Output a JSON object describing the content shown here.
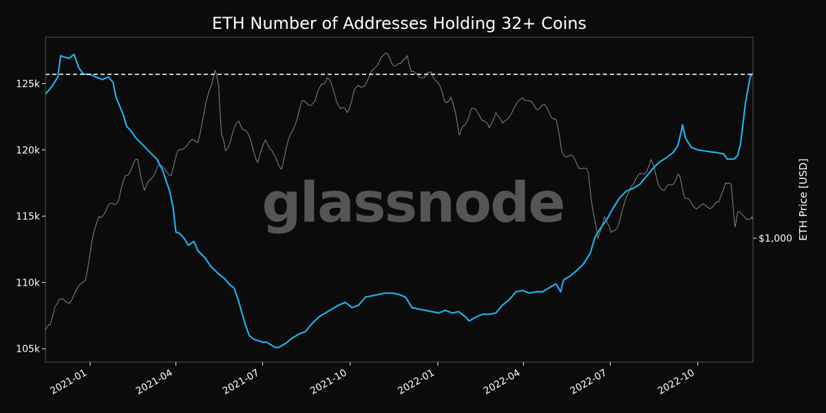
{
  "chart_data": {
    "type": "line",
    "title": "ETH Number of Addresses Holding 32+ Coins",
    "watermark": "glassnode",
    "xlabel": "",
    "ylabel_left": "",
    "ylabel_right": "ETH Price [USD]",
    "x_range": [
      "2020-11-15",
      "2022-11-28"
    ],
    "ylim_left": [
      104000,
      128500
    ],
    "y_right_scale": "log",
    "ylim_right": [
      350,
      5500
    ],
    "x_ticks": [
      {
        "date": "2021-01-01",
        "label": "2021-01"
      },
      {
        "date": "2021-04-01",
        "label": "2021-04"
      },
      {
        "date": "2021-07-01",
        "label": "2021-07"
      },
      {
        "date": "2021-10-01",
        "label": "2021-10"
      },
      {
        "date": "2022-01-01",
        "label": "2022-01"
      },
      {
        "date": "2022-04-01",
        "label": "2022-04"
      },
      {
        "date": "2022-07-01",
        "label": "2022-07"
      },
      {
        "date": "2022-10-01",
        "label": "2022-10"
      }
    ],
    "y_left_ticks": [
      {
        "value": 105000,
        "label": "105k"
      },
      {
        "value": 110000,
        "label": "110k"
      },
      {
        "value": 115000,
        "label": "115k"
      },
      {
        "value": 120000,
        "label": "120k"
      },
      {
        "value": 125000,
        "label": "125k"
      }
    ],
    "y_right_ticks": [
      {
        "value": 1000,
        "label": "$1,000"
      }
    ],
    "reference_line": {
      "value": 125700,
      "style": "dashed",
      "color": "#ffffff"
    },
    "colors": {
      "background": "#0b0b0b",
      "addresses": "#1eb4f0",
      "price": "#8a8a8a",
      "frame": "#555555"
    },
    "series": [
      {
        "axis": "left",
        "color": "#1eb4f0",
        "points": [
          [
            "2020-11-15",
            124200
          ],
          [
            "2020-11-22",
            124800
          ],
          [
            "2020-11-28",
            125500
          ],
          [
            "2020-12-01",
            127100
          ],
          [
            "2020-12-05",
            127000
          ],
          [
            "2020-12-10",
            126900
          ],
          [
            "2020-12-15",
            127200
          ],
          [
            "2020-12-20",
            126200
          ],
          [
            "2020-12-25",
            125700
          ],
          [
            "2021-01-01",
            125700
          ],
          [
            "2021-01-07",
            125500
          ],
          [
            "2021-01-14",
            125300
          ],
          [
            "2021-01-20",
            125500
          ],
          [
            "2021-01-25",
            125100
          ],
          [
            "2021-01-28",
            124000
          ],
          [
            "2021-02-01",
            123300
          ],
          [
            "2021-02-05",
            122600
          ],
          [
            "2021-02-08",
            121800
          ],
          [
            "2021-02-12",
            121500
          ],
          [
            "2021-02-18",
            120900
          ],
          [
            "2021-02-25",
            120400
          ],
          [
            "2021-03-05",
            119800
          ],
          [
            "2021-03-12",
            119300
          ],
          [
            "2021-03-18",
            118500
          ],
          [
            "2021-03-22",
            117600
          ],
          [
            "2021-03-25",
            117000
          ],
          [
            "2021-03-29",
            115700
          ],
          [
            "2021-04-01",
            113800
          ],
          [
            "2021-04-05",
            113700
          ],
          [
            "2021-04-10",
            113300
          ],
          [
            "2021-04-14",
            112800
          ],
          [
            "2021-04-20",
            113100
          ],
          [
            "2021-04-24",
            112400
          ],
          [
            "2021-05-01",
            111900
          ],
          [
            "2021-05-08",
            111200
          ],
          [
            "2021-05-15",
            110700
          ],
          [
            "2021-05-22",
            110300
          ],
          [
            "2021-05-28",
            109800
          ],
          [
            "2021-06-01",
            109600
          ],
          [
            "2021-06-05",
            108800
          ],
          [
            "2021-06-09",
            107800
          ],
          [
            "2021-06-13",
            106800
          ],
          [
            "2021-06-17",
            106000
          ],
          [
            "2021-06-22",
            105700
          ],
          [
            "2021-06-27",
            105600
          ],
          [
            "2021-07-01",
            105500
          ],
          [
            "2021-07-05",
            105500
          ],
          [
            "2021-07-10",
            105300
          ],
          [
            "2021-07-14",
            105100
          ],
          [
            "2021-07-18",
            105100
          ],
          [
            "2021-07-25",
            105400
          ],
          [
            "2021-08-01",
            105800
          ],
          [
            "2021-08-08",
            106100
          ],
          [
            "2021-08-15",
            106300
          ],
          [
            "2021-08-22",
            106900
          ],
          [
            "2021-08-29",
            107400
          ],
          [
            "2021-09-05",
            107700
          ],
          [
            "2021-09-12",
            108000
          ],
          [
            "2021-09-19",
            108300
          ],
          [
            "2021-09-26",
            108500
          ],
          [
            "2021-10-03",
            108100
          ],
          [
            "2021-10-10",
            108300
          ],
          [
            "2021-10-17",
            108900
          ],
          [
            "2021-10-24",
            109000
          ],
          [
            "2021-10-31",
            109100
          ],
          [
            "2021-11-07",
            109200
          ],
          [
            "2021-11-14",
            109200
          ],
          [
            "2021-11-21",
            109100
          ],
          [
            "2021-11-28",
            108900
          ],
          [
            "2021-12-05",
            108100
          ],
          [
            "2021-12-12",
            108000
          ],
          [
            "2021-12-19",
            107900
          ],
          [
            "2021-12-26",
            107800
          ],
          [
            "2022-01-02",
            107700
          ],
          [
            "2022-01-09",
            107900
          ],
          [
            "2022-01-16",
            107700
          ],
          [
            "2022-01-23",
            107800
          ],
          [
            "2022-01-30",
            107400
          ],
          [
            "2022-02-03",
            107100
          ],
          [
            "2022-02-10",
            107400
          ],
          [
            "2022-02-17",
            107600
          ],
          [
            "2022-02-24",
            107600
          ],
          [
            "2022-03-03",
            107700
          ],
          [
            "2022-03-10",
            108300
          ],
          [
            "2022-03-17",
            108700
          ],
          [
            "2022-03-24",
            109300
          ],
          [
            "2022-03-31",
            109400
          ],
          [
            "2022-04-07",
            109200
          ],
          [
            "2022-04-14",
            109300
          ],
          [
            "2022-04-21",
            109300
          ],
          [
            "2022-04-28",
            109600
          ],
          [
            "2022-05-05",
            109900
          ],
          [
            "2022-05-10",
            109300
          ],
          [
            "2022-05-13",
            110200
          ],
          [
            "2022-05-20",
            110500
          ],
          [
            "2022-05-27",
            110900
          ],
          [
            "2022-06-03",
            111400
          ],
          [
            "2022-06-10",
            112200
          ],
          [
            "2022-06-15",
            113400
          ],
          [
            "2022-06-20",
            114000
          ],
          [
            "2022-06-27",
            114700
          ],
          [
            "2022-07-04",
            115600
          ],
          [
            "2022-07-11",
            116400
          ],
          [
            "2022-07-18",
            116900
          ],
          [
            "2022-07-25",
            117100
          ],
          [
            "2022-08-01",
            117400
          ],
          [
            "2022-08-08",
            118000
          ],
          [
            "2022-08-15",
            118600
          ],
          [
            "2022-08-22",
            119100
          ],
          [
            "2022-08-29",
            119400
          ],
          [
            "2022-09-05",
            119800
          ],
          [
            "2022-09-10",
            120300
          ],
          [
            "2022-09-14",
            121500
          ],
          [
            "2022-09-15",
            121900
          ],
          [
            "2022-09-18",
            120900
          ],
          [
            "2022-09-24",
            120200
          ],
          [
            "2022-10-01",
            120000
          ],
          [
            "2022-10-10",
            119900
          ],
          [
            "2022-10-20",
            119800
          ],
          [
            "2022-10-28",
            119700
          ],
          [
            "2022-11-01",
            119300
          ],
          [
            "2022-11-08",
            119300
          ],
          [
            "2022-11-12",
            119600
          ],
          [
            "2022-11-15",
            120500
          ],
          [
            "2022-11-20",
            123500
          ],
          [
            "2022-11-25",
            125500
          ],
          [
            "2022-11-28",
            125800
          ]
        ]
      },
      {
        "axis": "right",
        "color": "#8a8a8a",
        "points": [
          [
            "2020-11-15",
            460
          ],
          [
            "2020-11-20",
            480
          ],
          [
            "2020-11-25",
            560
          ],
          [
            "2020-12-01",
            600
          ],
          [
            "2020-12-10",
            575
          ],
          [
            "2020-12-18",
            650
          ],
          [
            "2020-12-27",
            700
          ],
          [
            "2021-01-03",
            980
          ],
          [
            "2021-01-10",
            1200
          ],
          [
            "2021-01-17",
            1250
          ],
          [
            "2021-01-24",
            1350
          ],
          [
            "2021-01-31",
            1380
          ],
          [
            "2021-02-07",
            1700
          ],
          [
            "2021-02-14",
            1830
          ],
          [
            "2021-02-20",
            1950
          ],
          [
            "2021-02-27",
            1500
          ],
          [
            "2021-03-06",
            1650
          ],
          [
            "2021-03-13",
            1850
          ],
          [
            "2021-03-20",
            1800
          ],
          [
            "2021-03-27",
            1700
          ],
          [
            "2021-04-03",
            2100
          ],
          [
            "2021-04-10",
            2150
          ],
          [
            "2021-04-17",
            2300
          ],
          [
            "2021-04-24",
            2250
          ],
          [
            "2021-05-01",
            2950
          ],
          [
            "2021-05-06",
            3500
          ],
          [
            "2021-05-12",
            4150
          ],
          [
            "2021-05-16",
            3600
          ],
          [
            "2021-05-19",
            2400
          ],
          [
            "2021-05-23",
            2100
          ],
          [
            "2021-05-30",
            2400
          ],
          [
            "2021-06-06",
            2700
          ],
          [
            "2021-06-13",
            2500
          ],
          [
            "2021-06-20",
            2200
          ],
          [
            "2021-06-26",
            1900
          ],
          [
            "2021-07-04",
            2300
          ],
          [
            "2021-07-11",
            2100
          ],
          [
            "2021-07-18",
            1850
          ],
          [
            "2021-07-21",
            1800
          ],
          [
            "2021-07-28",
            2300
          ],
          [
            "2021-08-04",
            2600
          ],
          [
            "2021-08-11",
            3200
          ],
          [
            "2021-08-18",
            3100
          ],
          [
            "2021-08-25",
            3200
          ],
          [
            "2021-09-01",
            3700
          ],
          [
            "2021-09-07",
            3900
          ],
          [
            "2021-09-14",
            3450
          ],
          [
            "2021-09-21",
            3000
          ],
          [
            "2021-09-28",
            2900
          ],
          [
            "2021-10-05",
            3500
          ],
          [
            "2021-10-12",
            3600
          ],
          [
            "2021-10-19",
            3800
          ],
          [
            "2021-10-26",
            4200
          ],
          [
            "2021-11-02",
            4600
          ],
          [
            "2021-11-09",
            4800
          ],
          [
            "2021-11-16",
            4300
          ],
          [
            "2021-11-23",
            4400
          ],
          [
            "2021-11-30",
            4700
          ],
          [
            "2021-12-04",
            4100
          ],
          [
            "2021-12-11",
            4000
          ],
          [
            "2021-12-18",
            3900
          ],
          [
            "2021-12-25",
            4100
          ],
          [
            "2022-01-01",
            3750
          ],
          [
            "2022-01-08",
            3200
          ],
          [
            "2022-01-15",
            3300
          ],
          [
            "2022-01-22",
            2600
          ],
          [
            "2022-01-24",
            2400
          ],
          [
            "2022-01-29",
            2600
          ],
          [
            "2022-02-05",
            3000
          ],
          [
            "2022-02-12",
            2900
          ],
          [
            "2022-02-19",
            2700
          ],
          [
            "2022-02-24",
            2550
          ],
          [
            "2022-03-03",
            2900
          ],
          [
            "2022-03-10",
            2650
          ],
          [
            "2022-03-17",
            2800
          ],
          [
            "2022-03-24",
            3100
          ],
          [
            "2022-03-31",
            3300
          ],
          [
            "2022-04-07",
            3200
          ],
          [
            "2022-04-14",
            3000
          ],
          [
            "2022-04-21",
            3100
          ],
          [
            "2022-04-28",
            2900
          ],
          [
            "2022-05-05",
            2750
          ],
          [
            "2022-05-11",
            2100
          ],
          [
            "2022-05-18",
            2000
          ],
          [
            "2022-05-25",
            1950
          ],
          [
            "2022-06-01",
            1800
          ],
          [
            "2022-06-08",
            1750
          ],
          [
            "2022-06-13",
            1250
          ],
          [
            "2022-06-18",
            1000
          ],
          [
            "2022-06-25",
            1200
          ],
          [
            "2022-07-02",
            1050
          ],
          [
            "2022-07-09",
            1100
          ],
          [
            "2022-07-16",
            1350
          ],
          [
            "2022-07-23",
            1550
          ],
          [
            "2022-07-30",
            1700
          ],
          [
            "2022-08-06",
            1720
          ],
          [
            "2022-08-13",
            1950
          ],
          [
            "2022-08-20",
            1600
          ],
          [
            "2022-08-27",
            1500
          ],
          [
            "2022-09-03",
            1570
          ],
          [
            "2022-09-10",
            1720
          ],
          [
            "2022-09-14",
            1580
          ],
          [
            "2022-09-18",
            1400
          ],
          [
            "2022-09-25",
            1330
          ],
          [
            "2022-10-02",
            1300
          ],
          [
            "2022-10-09",
            1320
          ],
          [
            "2022-10-16",
            1300
          ],
          [
            "2022-10-23",
            1360
          ],
          [
            "2022-10-30",
            1600
          ],
          [
            "2022-11-05",
            1580
          ],
          [
            "2022-11-09",
            1100
          ],
          [
            "2022-11-12",
            1250
          ],
          [
            "2022-11-19",
            1200
          ],
          [
            "2022-11-26",
            1180
          ],
          [
            "2022-11-28",
            1170
          ]
        ]
      }
    ]
  }
}
